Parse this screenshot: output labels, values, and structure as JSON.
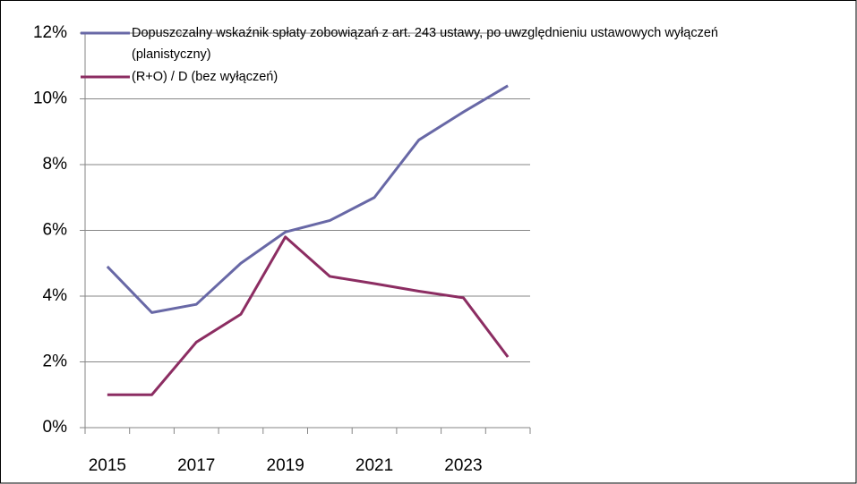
{
  "chart_data": {
    "type": "line",
    "categories": [
      "2015",
      null,
      "2017",
      null,
      "2019",
      null,
      "2021",
      null,
      "2023",
      null
    ],
    "series": [
      {
        "name": "Dopuszczalny wskaźnik spłaty zobowiązań z art. 243 ustawy, po uwzględnieniu ustawowych wyłączeń (planistyczny)",
        "color": "#6868a6",
        "values": [
          4.9,
          3.5,
          3.75,
          5.0,
          5.95,
          6.3,
          7.0,
          8.75,
          9.6,
          10.4
        ]
      },
      {
        "name": "(R+O) / D (bez wyłączeń)",
        "color": "#8c2d62",
        "values": [
          1.0,
          1.0,
          2.6,
          3.45,
          5.8,
          4.6,
          4.38,
          4.15,
          3.95,
          2.15
        ]
      }
    ],
    "ylim": [
      0,
      12
    ],
    "yticks": [
      {
        "value": 0,
        "label": "0%"
      },
      {
        "value": 2,
        "label": "2%"
      },
      {
        "value": 4,
        "label": "4%"
      },
      {
        "value": 6,
        "label": "6%"
      },
      {
        "value": 8,
        "label": "8%"
      },
      {
        "value": 10,
        "label": "10%"
      },
      {
        "value": 12,
        "label": "12%"
      }
    ],
    "grid": true,
    "legend": "top"
  }
}
